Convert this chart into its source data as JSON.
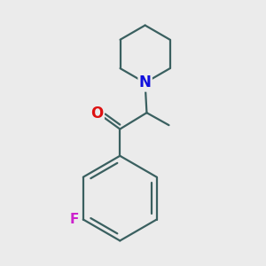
{
  "bg_color": "#ebebeb",
  "bond_color": "#3a6060",
  "N_color": "#1010dd",
  "O_color": "#dd1010",
  "F_color": "#cc22cc",
  "line_width": 1.6,
  "font_size_atom": 11,
  "fig_w": 3.0,
  "fig_h": 3.0,
  "dpi": 100,
  "xlim": [
    2.0,
    8.0
  ],
  "ylim": [
    0.8,
    8.8
  ]
}
